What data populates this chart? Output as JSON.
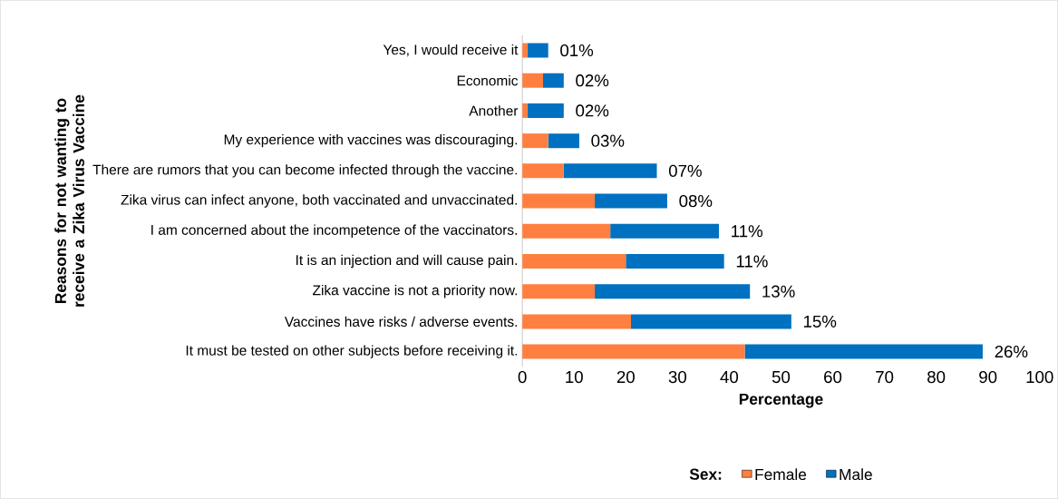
{
  "chart_data": {
    "type": "bar",
    "orientation": "horizontal",
    "stacked": true,
    "ylabel": "Reasons for not wanting to receive a Zika Virus Vaccine",
    "xlabel": "Percentage",
    "legend_title": "Sex:",
    "categories": [
      "Yes, I would receive it",
      "Economic",
      "Another",
      "My experience with vaccines was discouraging.",
      "There are rumors that you can become infected through the vaccine.",
      "Zika virus can infect anyone, both vaccinated and unvaccinated.",
      "I am concerned about the incompetence of the vaccinators.",
      "It is an injection and will cause pain.",
      "Zika vaccine is not a priority now.",
      "Vaccines have risks / adverse events.",
      "It must be tested on other subjects before receiving it."
    ],
    "series": [
      {
        "name": "Female",
        "color": "#ff7f41",
        "values": [
          1,
          4,
          1,
          5,
          8,
          14,
          17,
          20,
          14,
          21,
          43
        ]
      },
      {
        "name": "Male",
        "color": "#0070c0",
        "values": [
          4,
          4,
          7,
          6,
          18,
          14,
          21,
          19,
          30,
          31,
          46
        ]
      }
    ],
    "annotations": [
      {
        "text": "01%",
        "x": 5,
        "y": "Yes, I would receive it"
      },
      {
        "text": "02%",
        "x": 8,
        "y": "Economic"
      },
      {
        "text": "02%",
        "x": 8,
        "y": "Another"
      },
      {
        "text": "03%",
        "x": 11,
        "y": "My experience with vaccines was discouraging."
      },
      {
        "text": "07%",
        "x": 26,
        "y": "There are rumors that you can become infected through the vaccine."
      },
      {
        "text": "08%",
        "x": 28,
        "y": "Zika virus can infect anyone, both vaccinated and unvaccinated."
      },
      {
        "text": "11%",
        "x": 38,
        "y": "I am concerned about the incompetence of the vaccinators."
      },
      {
        "text": "11%",
        "x": 39,
        "y": "It is an injection and will cause pain."
      },
      {
        "text": "13%",
        "x": 44,
        "y": "Zika vaccine is not a priority now."
      },
      {
        "text": "15%",
        "x": 52,
        "y": "Vaccines have risks / adverse events."
      },
      {
        "text": "26%",
        "x": 89,
        "y": "It must be tested on other subjects before receiving it."
      }
    ],
    "xlim": [
      0,
      100
    ],
    "xticks": [
      0,
      10,
      20,
      30,
      40,
      50,
      60,
      70,
      80,
      90,
      100
    ],
    "legend": "bottom",
    "grid": false
  }
}
